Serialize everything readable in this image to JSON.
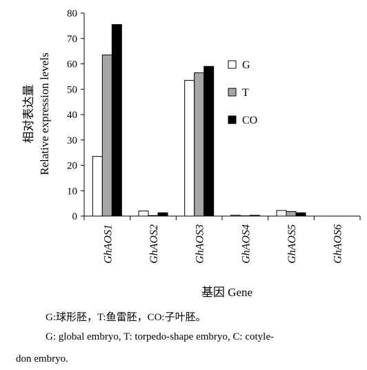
{
  "chart_data": {
    "type": "bar",
    "categories": [
      "GhAOS1",
      "GhAOS2",
      "GhAOS3",
      "GhAOS4",
      "GhAOS5",
      "GhAOS6"
    ],
    "series": [
      {
        "name": "G",
        "values": [
          23.5,
          2.0,
          53.5,
          0.3,
          2.2,
          0
        ],
        "color": "#ffffff"
      },
      {
        "name": "T",
        "values": [
          63.5,
          0.2,
          56.5,
          0.1,
          1.8,
          0
        ],
        "color": "#a6a6a6"
      },
      {
        "name": "CO",
        "values": [
          75.5,
          1.3,
          59.0,
          0.3,
          1.3,
          0
        ],
        "color": "#000000"
      }
    ],
    "ylim": [
      0,
      80
    ],
    "yticks": [
      0,
      10,
      20,
      30,
      40,
      50,
      60,
      70,
      80
    ],
    "ylabel_cn": "相对表达量",
    "ylabel": "Relative expression levels",
    "xlabel": "基因 Gene",
    "legend_position": "right"
  },
  "caption": {
    "line_cn": "G:球形胚，T:鱼雷胚，CO:子叶胚。",
    "line_en_1": "G: global embryo, T: torpedo-shape embryo, C: cotyle-",
    "line_en_2": "don embryo."
  }
}
